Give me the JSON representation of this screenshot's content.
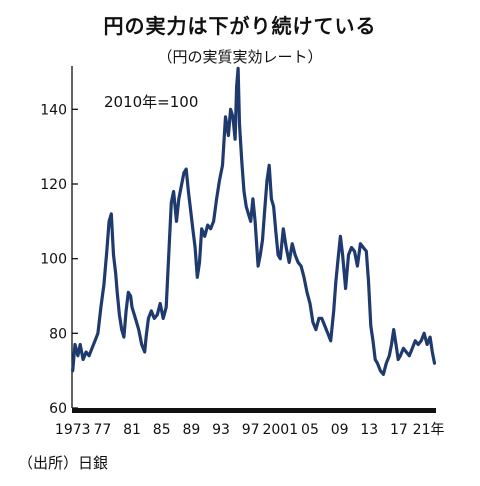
{
  "title": "円の実力は下がり続けている",
  "subtitle": "（円の実質実効レート）",
  "source": "（出所）日銀",
  "chart_data": {
    "type": "line",
    "annotation": "2010年=100",
    "ylim": [
      60,
      150
    ],
    "xlim": [
      1972.9,
      2022.0
    ],
    "grid": false,
    "line_color": "#1f3a6e",
    "axis_color": "#111111",
    "y_ticks": [
      {
        "value": 60,
        "label": "60"
      },
      {
        "value": 80,
        "label": "80"
      },
      {
        "value": 100,
        "label": "100"
      },
      {
        "value": 120,
        "label": "120"
      },
      {
        "value": 140,
        "label": "140"
      }
    ],
    "x_ticks": [
      {
        "value": 1973,
        "label": "1973"
      },
      {
        "value": 1977,
        "label": "77"
      },
      {
        "value": 1981,
        "label": "81"
      },
      {
        "value": 1985,
        "label": "85"
      },
      {
        "value": 1989,
        "label": "89"
      },
      {
        "value": 1993,
        "label": "93"
      },
      {
        "value": 1997,
        "label": "97"
      },
      {
        "value": 2001,
        "label": "2001"
      },
      {
        "value": 2005,
        "label": "05"
      },
      {
        "value": 2009,
        "label": "09"
      },
      {
        "value": 2013,
        "label": "13"
      },
      {
        "value": 2017,
        "label": "17"
      },
      {
        "value": 2021,
        "label": "21年"
      }
    ],
    "series": [
      {
        "x": [
          1973.0,
          1973.3,
          1973.7,
          1974.0,
          1974.4,
          1974.8,
          1975.2,
          1975.6,
          1976.0,
          1976.4,
          1976.8,
          1977.2,
          1977.6,
          1977.9,
          1978.2,
          1978.5,
          1978.8,
          1979.0,
          1979.3,
          1979.6,
          1979.9,
          1980.2,
          1980.5,
          1980.8,
          1981.0,
          1981.3,
          1981.6,
          1981.9,
          1982.3,
          1982.7,
          1982.9,
          1983.2,
          1983.6,
          1984.0,
          1984.4,
          1984.8,
          1985.2,
          1985.6,
          1986.0,
          1986.3,
          1986.6,
          1987.0,
          1987.3,
          1987.6,
          1988.0,
          1988.3,
          1988.6,
          1988.9,
          1989.2,
          1989.5,
          1989.8,
          1990.1,
          1990.4,
          1990.8,
          1991.2,
          1991.6,
          1992.0,
          1992.4,
          1992.8,
          1993.2,
          1993.6,
          1994.0,
          1994.3,
          1994.6,
          1994.9,
          1995.1,
          1995.3,
          1995.5,
          1995.8,
          1996.1,
          1996.4,
          1996.7,
          1997.0,
          1997.3,
          1997.6,
          1998.0,
          1998.3,
          1998.6,
          1998.9,
          1999.2,
          1999.5,
          1999.8,
          2000.1,
          2000.4,
          2000.7,
          2001.0,
          2001.4,
          2001.8,
          2002.2,
          2002.6,
          2003.0,
          2003.4,
          2003.8,
          2004.2,
          2004.6,
          2005.0,
          2005.4,
          2005.8,
          2006.2,
          2006.6,
          2007.0,
          2007.4,
          2007.8,
          2008.2,
          2008.5,
          2008.8,
          2009.1,
          2009.4,
          2009.8,
          2010.2,
          2010.6,
          2011.0,
          2011.4,
          2011.8,
          2012.2,
          2012.6,
          2012.9,
          2013.2,
          2013.5,
          2013.8,
          2014.1,
          2014.5,
          2014.9,
          2015.3,
          2015.7,
          2016.0,
          2016.3,
          2016.6,
          2016.9,
          2017.2,
          2017.6,
          2018.0,
          2018.4,
          2018.8,
          2019.2,
          2019.6,
          2020.0,
          2020.4,
          2020.8,
          2021.2,
          2021.5,
          2021.8
        ],
        "y": [
          70,
          77,
          74,
          77,
          73,
          75,
          74,
          76,
          78,
          80,
          87,
          93,
          102,
          110,
          112,
          101,
          96,
          91,
          85,
          81,
          79,
          86,
          91,
          90,
          87,
          85,
          83,
          81,
          77,
          75,
          79,
          84,
          86,
          84,
          85,
          88,
          84,
          87,
          103,
          115,
          118,
          110,
          116,
          119,
          123,
          124,
          118,
          113,
          108,
          103,
          95,
          99,
          108,
          106,
          109,
          108,
          110,
          116,
          121,
          125,
          138,
          133,
          140,
          138,
          132,
          146,
          151,
          136,
          126,
          118,
          114,
          112,
          110,
          116,
          110,
          98,
          101,
          105,
          113,
          121,
          125,
          116,
          114,
          107,
          101,
          100,
          108,
          103,
          99,
          104,
          101,
          99,
          98,
          95,
          91,
          88,
          83,
          81,
          84,
          84,
          82,
          80,
          78,
          86,
          94,
          100,
          106,
          101,
          92,
          101,
          103,
          102,
          98,
          104,
          103,
          102,
          94,
          82,
          78,
          73,
          72,
          70,
          69,
          72,
          74,
          77,
          81,
          77,
          73,
          74,
          76,
          75,
          74,
          76,
          78,
          77,
          78,
          80,
          77,
          79,
          75,
          72
        ]
      }
    ]
  }
}
